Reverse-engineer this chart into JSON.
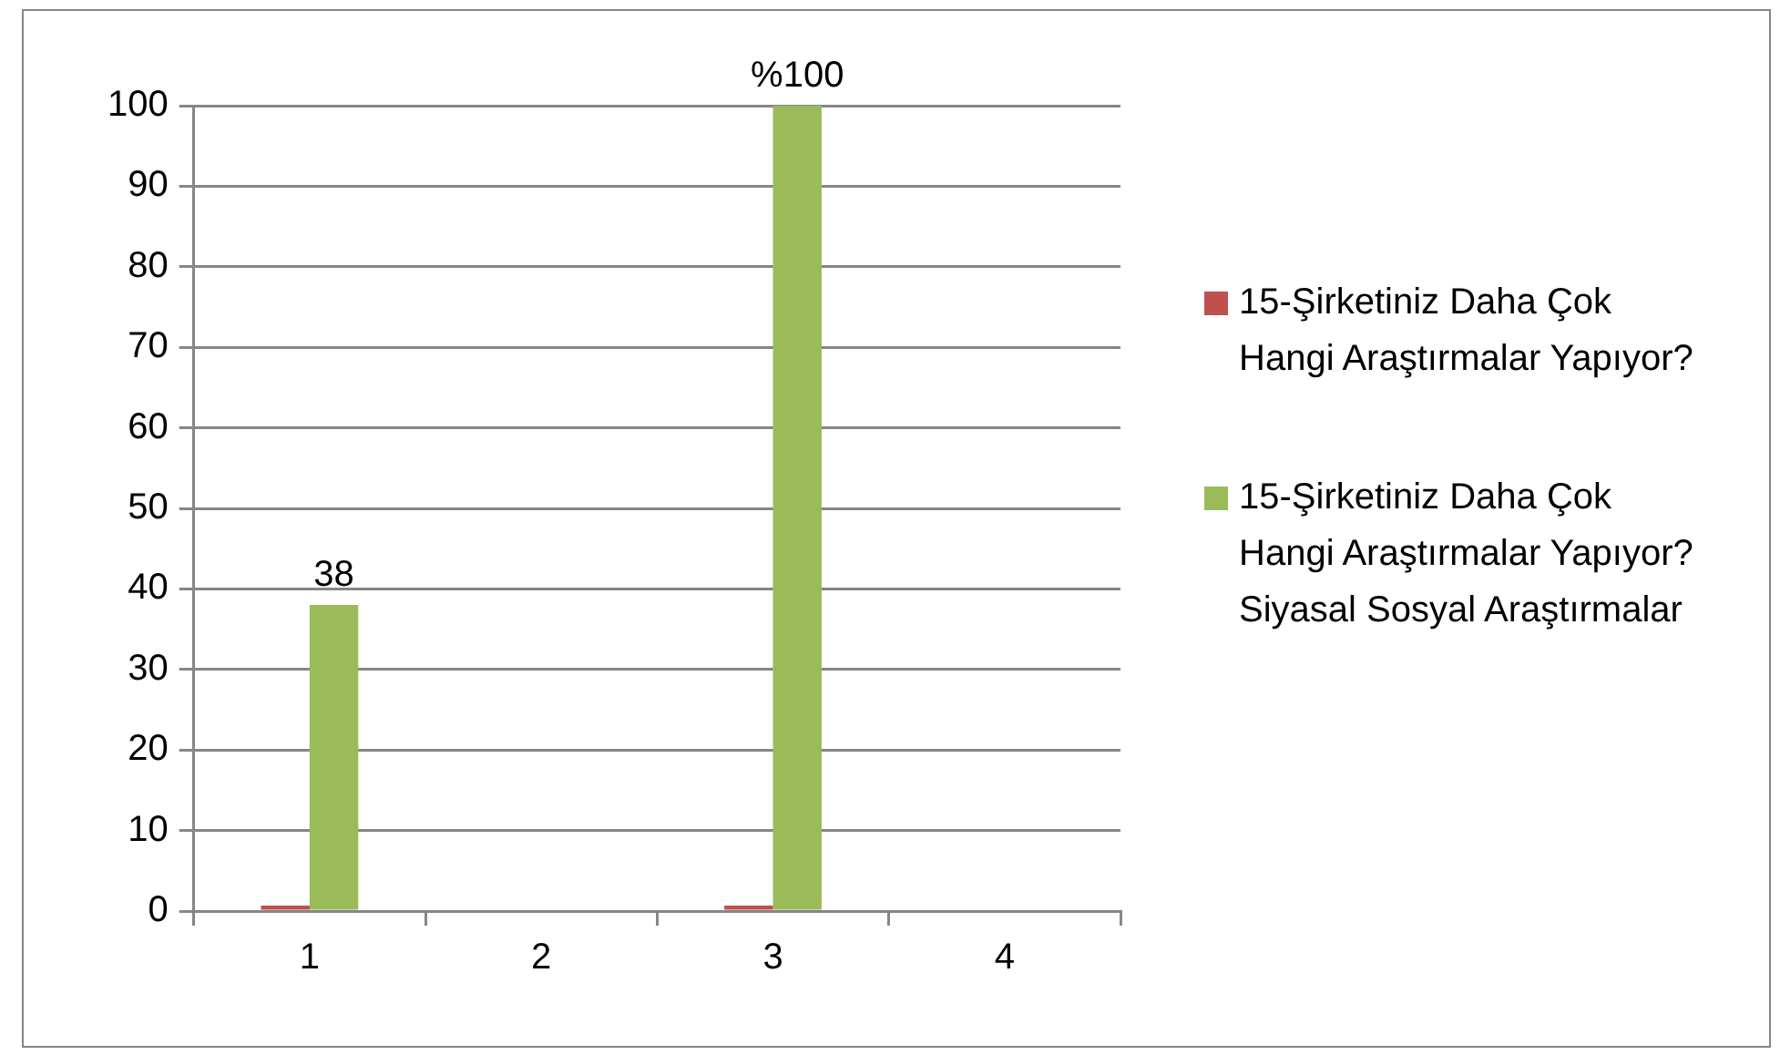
{
  "chart_data": {
    "type": "bar",
    "categories": [
      "1",
      "2",
      "3",
      "4"
    ],
    "series": [
      {
        "name": "15-Şirketiniz Daha Çok Hangi Araştırmalar Yapıyor?",
        "color": "#c0504d",
        "values": [
          0,
          null,
          0,
          null
        ]
      },
      {
        "name": "15-Şirketiniz Daha Çok Hangi Araştırmalar Yapıyor?    Siyasal Sosyal Araştırmalar",
        "color": "#9bbb59",
        "values": [
          38,
          null,
          100,
          null
        ],
        "value_labels": [
          "38",
          null,
          "%100",
          null
        ]
      }
    ],
    "ylim": [
      0,
      100
    ],
    "yticks": [
      0,
      10,
      20,
      30,
      40,
      50,
      60,
      70,
      80,
      90,
      100
    ],
    "grid": "y",
    "legend": "right"
  }
}
